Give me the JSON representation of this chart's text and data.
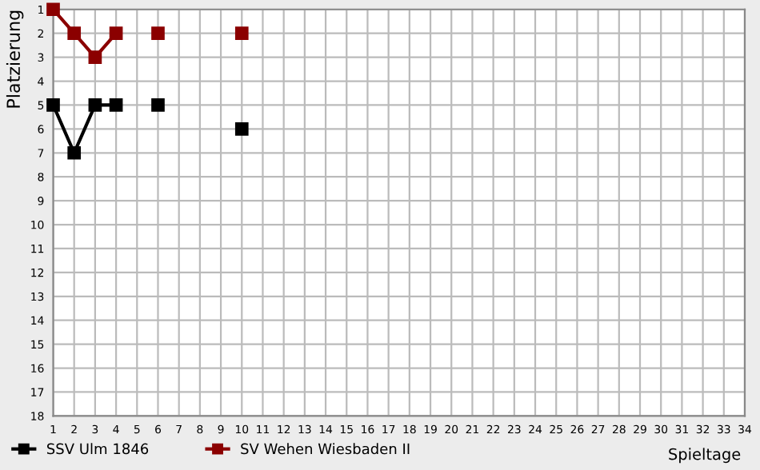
{
  "chart_data": {
    "type": "line",
    "xlabel": "Spieltage",
    "ylabel": "Platzierung",
    "x": [
      1,
      2,
      3,
      4,
      5,
      6,
      7,
      8,
      9,
      10
    ],
    "series": [
      {
        "name": "SSV Ulm 1846",
        "color": "#000000",
        "values": [
          5,
          7,
          5,
          5,
          null,
          5,
          null,
          null,
          null,
          6
        ]
      },
      {
        "name": "SV Wehen Wiesbaden II",
        "color": "#8b0000",
        "values": [
          1,
          2,
          3,
          2,
          null,
          2,
          null,
          null,
          null,
          2
        ]
      }
    ],
    "xlim": [
      1,
      34
    ],
    "xticks": [
      1,
      2,
      3,
      4,
      5,
      6,
      7,
      8,
      9,
      10,
      11,
      12,
      13,
      14,
      15,
      16,
      17,
      18,
      19,
      20,
      21,
      22,
      23,
      24,
      25,
      26,
      27,
      28,
      29,
      30,
      31,
      32,
      33,
      34
    ],
    "ylim": [
      18,
      1
    ],
    "yticks": [
      1,
      2,
      3,
      4,
      5,
      6,
      7,
      8,
      9,
      10,
      11,
      12,
      13,
      14,
      15,
      16,
      17,
      18
    ],
    "grid": true,
    "legend": "bottom left",
    "marker": "square",
    "line_style": "solid"
  }
}
